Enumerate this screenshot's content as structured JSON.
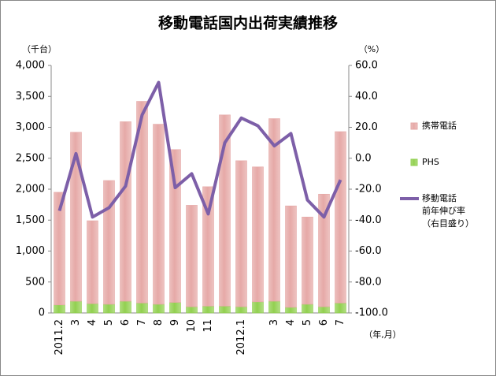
{
  "chart_data": {
    "type": "bar_line",
    "title": "移動電話国内出荷実績推移",
    "y_unit": "（千台）",
    "y2_unit": "（%）",
    "x_unit": "（年,月）",
    "categories": [
      "2011.2",
      "3",
      "4",
      "5",
      "6",
      "7",
      "8",
      "9",
      "10",
      "11",
      null,
      "2012.1",
      null,
      "3",
      "4",
      "5",
      "6",
      "7"
    ],
    "series": [
      {
        "name": "PHS",
        "color": "#92d050",
        "type": "bar",
        "values": [
          130,
          190,
          150,
          140,
          190,
          160,
          140,
          170,
          100,
          110,
          110,
          100,
          180,
          190,
          90,
          140,
          100,
          160
        ]
      },
      {
        "name": "携帯電話",
        "color": "#e6a9a7",
        "type": "bar",
        "values": [
          1820,
          2730,
          1340,
          2000,
          2900,
          3260,
          2910,
          2470,
          1640,
          1930,
          3090,
          2360,
          2180,
          2950,
          1640,
          1410,
          1820,
          2770
        ]
      },
      {
        "name": "移動電話",
        "color": "#7d5fa8",
        "type": "line",
        "axis": "y2",
        "values": [
          -34,
          3,
          -38,
          -32,
          -18,
          28,
          49,
          -19,
          -10,
          -36,
          10,
          26,
          21,
          8,
          16,
          -27,
          -38,
          -14
        ]
      }
    ],
    "legend_line_note": [
      "前年伸び率",
      "（右目盛り）"
    ],
    "stacked": true,
    "ylim": [
      0,
      4000
    ],
    "yticks": [
      0,
      500,
      {
        "value": 1000,
        "label": "1,000"
      },
      {
        "value": 1500,
        "label": "1,500"
      },
      {
        "value": 2000,
        "label": "2,000"
      },
      {
        "value": 2500,
        "label": "2,500"
      },
      {
        "value": 3000,
        "label": "3,000"
      },
      {
        "value": 3500,
        "label": "3,500"
      },
      {
        "value": 4000,
        "label": "4,000"
      }
    ],
    "y2lim": [
      -100,
      60
    ],
    "y2ticks": [
      {
        "value": -100,
        "label": "-100.0"
      },
      {
        "value": -80,
        "label": "-80.0"
      },
      {
        "value": -60,
        "label": "-60.0"
      },
      {
        "value": -40,
        "label": "-40.0"
      },
      {
        "value": -20,
        "label": "-20.0"
      },
      {
        "value": 0,
        "label": "0.0"
      },
      {
        "value": 20,
        "label": "20.0"
      },
      {
        "value": 40,
        "label": "40.0"
      },
      {
        "value": 60,
        "label": "60.0"
      }
    ],
    "y2_negative_label_color": "#ff0000",
    "grid": false
  }
}
